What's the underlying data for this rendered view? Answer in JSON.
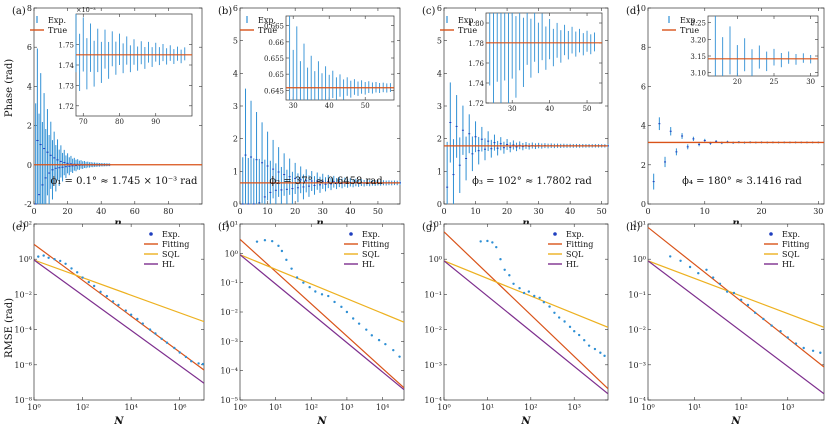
{
  "figure": {
    "ylabel_top": "Phase (rad)",
    "ylabel_bottom": "RMSE (rad)"
  },
  "chart_data": [
    {
      "id": "a",
      "label": "(a)",
      "type": "line",
      "xlabel": "n",
      "xlim": [
        0,
        100
      ],
      "ylim": [
        -2,
        8
      ],
      "xticks": [
        0,
        20,
        40,
        60,
        80
      ],
      "yticks": [
        -2,
        0,
        2,
        4,
        6,
        8
      ],
      "true_value": 0.001745,
      "start": 6.0,
      "spread": 2.6,
      "decay": 6,
      "count": 45,
      "annotation": "ϕ₁ = 0.1° ≈ 1.745 × 10⁻³ rad",
      "legend": [
        "Exp.",
        "True"
      ],
      "inset": {
        "xlim": [
          68,
          100
        ],
        "ylim": [
          1.715,
          1.765
        ],
        "xticks": [
          70,
          80,
          90
        ],
        "yticks": [
          1.72,
          1.73,
          1.74,
          1.75
        ],
        "yticklabels": [
          "1.72",
          "1.73",
          "1.74",
          "1.75"
        ],
        "exponent": "×10⁻³",
        "true_value": 1.745,
        "from": 68,
        "to": 98,
        "amp": 0.014,
        "decay": 14
      }
    },
    {
      "id": "b",
      "label": "(b)",
      "type": "line",
      "xlabel": "n",
      "xlim": [
        0,
        58
      ],
      "ylim": [
        0,
        6
      ],
      "xticks": [
        0,
        10,
        20,
        30,
        40,
        50
      ],
      "yticks": [
        0,
        1,
        2,
        3,
        4,
        5,
        6
      ],
      "true_value": 0.6458,
      "start": 3.0,
      "spread": 1.6,
      "decay": 9,
      "count": 58,
      "annotation": "ϕ₂ = 37° ≈ 0.6458 rad",
      "legend": [
        "Exp.",
        "True"
      ],
      "inset": {
        "xlim": [
          28,
          58
        ],
        "ylim": [
          0.642,
          0.668
        ],
        "xticks": [
          30,
          40,
          50
        ],
        "yticks": [
          0.645,
          0.65,
          0.655,
          0.66,
          0.665
        ],
        "yticklabels": [
          "0.645",
          "0.65",
          "0.655",
          "0.66",
          "0.665"
        ],
        "exponent": "",
        "true_value": 0.6458,
        "from": 29,
        "to": 57,
        "amp": 0.017,
        "decay": 6
      }
    },
    {
      "id": "c",
      "label": "(c)",
      "type": "line",
      "xlabel": "n",
      "xlim": [
        0,
        52
      ],
      "ylim": [
        0,
        6
      ],
      "xticks": [
        0,
        10,
        20,
        30,
        40,
        50
      ],
      "yticks": [
        0,
        1,
        2,
        3,
        4,
        5,
        6
      ],
      "true_value": 1.7802,
      "start": 3.3,
      "spread": 1.5,
      "decay": 6,
      "count": 52,
      "annotation": "ϕ₃ = 102° ≈ 1.7802 rad",
      "legend": [
        "Exp.",
        "True"
      ],
      "inset": {
        "xlim": [
          23,
          54
        ],
        "ylim": [
          1.72,
          1.81
        ],
        "xticks": [
          30,
          40,
          50
        ],
        "yticks": [
          1.72,
          1.74,
          1.76,
          1.78,
          1.8
        ],
        "yticklabels": [
          "1.72",
          "1.74",
          "1.76",
          "1.78",
          "1.80"
        ],
        "exponent": "",
        "true_value": 1.7802,
        "from": 24,
        "to": 52,
        "amp": 0.07,
        "decay": 9
      }
    },
    {
      "id": "d",
      "label": "(d)",
      "type": "line",
      "xlabel": "n",
      "xlim": [
        0,
        31
      ],
      "ylim": [
        0,
        10
      ],
      "xticks": [
        0,
        10,
        20,
        30
      ],
      "yticks": [
        0,
        2,
        4,
        6,
        8,
        10
      ],
      "true_value": 3.1416,
      "start": 3.6,
      "spread": 2.8,
      "decay": 3,
      "count": 30,
      "annotation": "ϕ₄ = 180° ≈ 3.1416 rad",
      "legend": [
        "Exp.",
        "True"
      ],
      "inset": {
        "xlim": [
          16,
          31
        ],
        "ylim": [
          3.09,
          3.27
        ],
        "xticks": [
          20,
          25,
          30
        ],
        "yticks": [
          3.1,
          3.15,
          3.2,
          3.25
        ],
        "yticklabels": [
          "3.10",
          "3.15",
          "3.20",
          "3.25"
        ],
        "exponent": "",
        "true_value": 3.1416,
        "from": 17,
        "to": 30,
        "amp": 0.1,
        "decay": 4
      }
    },
    {
      "id": "e",
      "label": "(e)",
      "type": "scatter",
      "xlabel": "N",
      "logx": true,
      "logy": true,
      "xlim": [
        1,
        10000000
      ],
      "ylim": [
        1e-08,
        100
      ],
      "xticks": [
        1,
        100,
        10000,
        1000000
      ],
      "xticklabels": [
        "10⁰",
        "10²",
        "10⁴",
        "10⁶"
      ],
      "yticks": [
        1e-08,
        1e-06,
        0.0001,
        0.01,
        1,
        100
      ],
      "yticklabels": [
        "10⁻⁸",
        "10⁻⁶",
        "10⁻⁴",
        "10⁻²",
        "10⁰",
        "10²"
      ],
      "legend": [
        "Exp.",
        "Fitting",
        "SQL",
        "HL"
      ],
      "fit": {
        "a": 7,
        "slope": -1.02
      },
      "sql": {
        "a": 0.9
      },
      "hl": {
        "a": 0.9
      },
      "points": [
        [
          1.5,
          1.4
        ],
        [
          2.5,
          1.6
        ],
        [
          4,
          1.2
        ],
        [
          7,
          1.0
        ],
        [
          12,
          0.8
        ],
        [
          20,
          0.55
        ],
        [
          35,
          0.3
        ],
        [
          60,
          0.18
        ],
        [
          100,
          0.09
        ],
        [
          180,
          0.05
        ],
        [
          300,
          0.03
        ],
        [
          550,
          0.014
        ],
        [
          1000,
          0.008
        ],
        [
          1800,
          0.004
        ],
        [
          3000,
          0.0025
        ],
        [
          6000,
          0.0012
        ],
        [
          10000,
          0.0007
        ],
        [
          18000,
          0.0004
        ],
        [
          30000,
          0.00022
        ],
        [
          60000,
          0.0001
        ],
        [
          100000,
          6e-05
        ],
        [
          180000,
          3e-05
        ],
        [
          300000,
          1.8e-05
        ],
        [
          600000,
          9e-06
        ],
        [
          1000000,
          5e-06
        ],
        [
          1800000,
          2.8e-06
        ],
        [
          3000000,
          1.6e-06
        ],
        [
          6000000,
          1.2e-06
        ],
        [
          9000000,
          1.1e-06
        ]
      ]
    },
    {
      "id": "f",
      "label": "(f)",
      "type": "scatter",
      "xlabel": "N",
      "logx": true,
      "logy": true,
      "xlim": [
        1,
        40000
      ],
      "ylim": [
        1e-05,
        10
      ],
      "xticks": [
        1,
        10,
        100,
        1000,
        10000
      ],
      "xticklabels": [
        "10⁰",
        "10¹",
        "10²",
        "10³",
        "10⁴"
      ],
      "yticks": [
        1e-05,
        0.0001,
        0.001,
        0.01,
        0.1,
        1,
        10
      ],
      "yticklabels": [
        "10⁻⁵",
        "10⁻⁴",
        "10⁻³",
        "10⁻²",
        "10⁻¹",
        "10⁰",
        "10¹"
      ],
      "legend": [
        "Exp.",
        "Fitting",
        "SQL",
        "HL"
      ],
      "fit": {
        "a": 3,
        "slope": -1.1
      },
      "sql": {
        "a": 0.9
      },
      "hl": {
        "a": 0.9
      },
      "points": [
        [
          3,
          2.5
        ],
        [
          5,
          2.8
        ],
        [
          8,
          2.6
        ],
        [
          12,
          1.8
        ],
        [
          15,
          1.2
        ],
        [
          20,
          0.6
        ],
        [
          28,
          0.3
        ],
        [
          40,
          0.15
        ],
        [
          60,
          0.1
        ],
        [
          90,
          0.07
        ],
        [
          130,
          0.05
        ],
        [
          200,
          0.04
        ],
        [
          300,
          0.035
        ],
        [
          450,
          0.022
        ],
        [
          700,
          0.015
        ],
        [
          1000,
          0.01
        ],
        [
          1500,
          0.006
        ],
        [
          2200,
          0.004
        ],
        [
          3500,
          0.0025
        ],
        [
          5000,
          0.0016
        ],
        [
          8000,
          0.0011
        ],
        [
          12000,
          0.0008
        ],
        [
          20000,
          0.0005
        ],
        [
          30000,
          0.0003
        ]
      ]
    },
    {
      "id": "g",
      "label": "(g)",
      "type": "scatter",
      "xlabel": "N",
      "logx": true,
      "logy": true,
      "xlim": [
        1,
        6000
      ],
      "ylim": [
        0.0001,
        10
      ],
      "xticks": [
        1,
        10,
        100,
        1000
      ],
      "xticklabels": [
        "10⁰",
        "10¹",
        "10²",
        "10³"
      ],
      "yticks": [
        0.0001,
        0.001,
        0.01,
        0.1,
        1,
        10
      ],
      "yticklabels": [
        "10⁻⁴",
        "10⁻³",
        "10⁻²",
        "10⁻¹",
        "10⁰",
        "10¹"
      ],
      "legend": [
        "Exp.",
        "Fitting",
        "SQL",
        "HL"
      ],
      "fit": {
        "a": 6,
        "slope": -1.18
      },
      "sql": {
        "a": 0.9
      },
      "hl": {
        "a": 0.9
      },
      "points": [
        [
          7,
          3.2
        ],
        [
          10,
          3.3
        ],
        [
          13,
          3.0
        ],
        [
          16,
          2.2
        ],
        [
          20,
          1.0
        ],
        [
          25,
          0.5
        ],
        [
          32,
          0.35
        ],
        [
          40,
          0.2
        ],
        [
          55,
          0.15
        ],
        [
          70,
          0.11
        ],
        [
          90,
          0.12
        ],
        [
          120,
          0.09
        ],
        [
          160,
          0.08
        ],
        [
          200,
          0.06
        ],
        [
          270,
          0.045
        ],
        [
          350,
          0.03
        ],
        [
          450,
          0.022
        ],
        [
          600,
          0.017
        ],
        [
          800,
          0.012
        ],
        [
          1000,
          0.009
        ],
        [
          1300,
          0.007
        ],
        [
          1700,
          0.005
        ],
        [
          2200,
          0.0035
        ],
        [
          3000,
          0.0028
        ],
        [
          4000,
          0.0022
        ],
        [
          5000,
          0.0018
        ]
      ]
    },
    {
      "id": "h",
      "label": "(h)",
      "type": "scatter",
      "xlabel": "N",
      "logx": true,
      "logy": true,
      "xlim": [
        1,
        6000
      ],
      "ylim": [
        0.0001,
        10
      ],
      "xticks": [
        1,
        10,
        100,
        1000
      ],
      "xticklabels": [
        "10⁰",
        "10¹",
        "10²",
        "10³"
      ],
      "yticks": [
        0.0001,
        0.001,
        0.01,
        0.1,
        1,
        10
      ],
      "yticklabels": [
        "10⁻⁴",
        "10⁻³",
        "10⁻²",
        "10⁻¹",
        "10⁰",
        "10¹"
      ],
      "legend": [
        "Exp.",
        "Fitting",
        "SQL",
        "HL"
      ],
      "fit": {
        "a": 8,
        "slope": -1.05
      },
      "sql": {
        "a": 0.9
      },
      "hl": {
        "a": 0.9
      },
      "points": [
        [
          3,
          1.2
        ],
        [
          5,
          0.9
        ],
        [
          8,
          0.6
        ],
        [
          12,
          0.4
        ],
        [
          18,
          0.5
        ],
        [
          25,
          0.3
        ],
        [
          35,
          0.2
        ],
        [
          50,
          0.12
        ],
        [
          70,
          0.11
        ],
        [
          100,
          0.07
        ],
        [
          140,
          0.05
        ],
        [
          200,
          0.03
        ],
        [
          300,
          0.02
        ],
        [
          450,
          0.013
        ],
        [
          700,
          0.009
        ],
        [
          1000,
          0.006
        ],
        [
          1500,
          0.004
        ],
        [
          2200,
          0.003
        ],
        [
          3500,
          0.0025
        ],
        [
          5000,
          0.0022
        ]
      ]
    }
  ]
}
